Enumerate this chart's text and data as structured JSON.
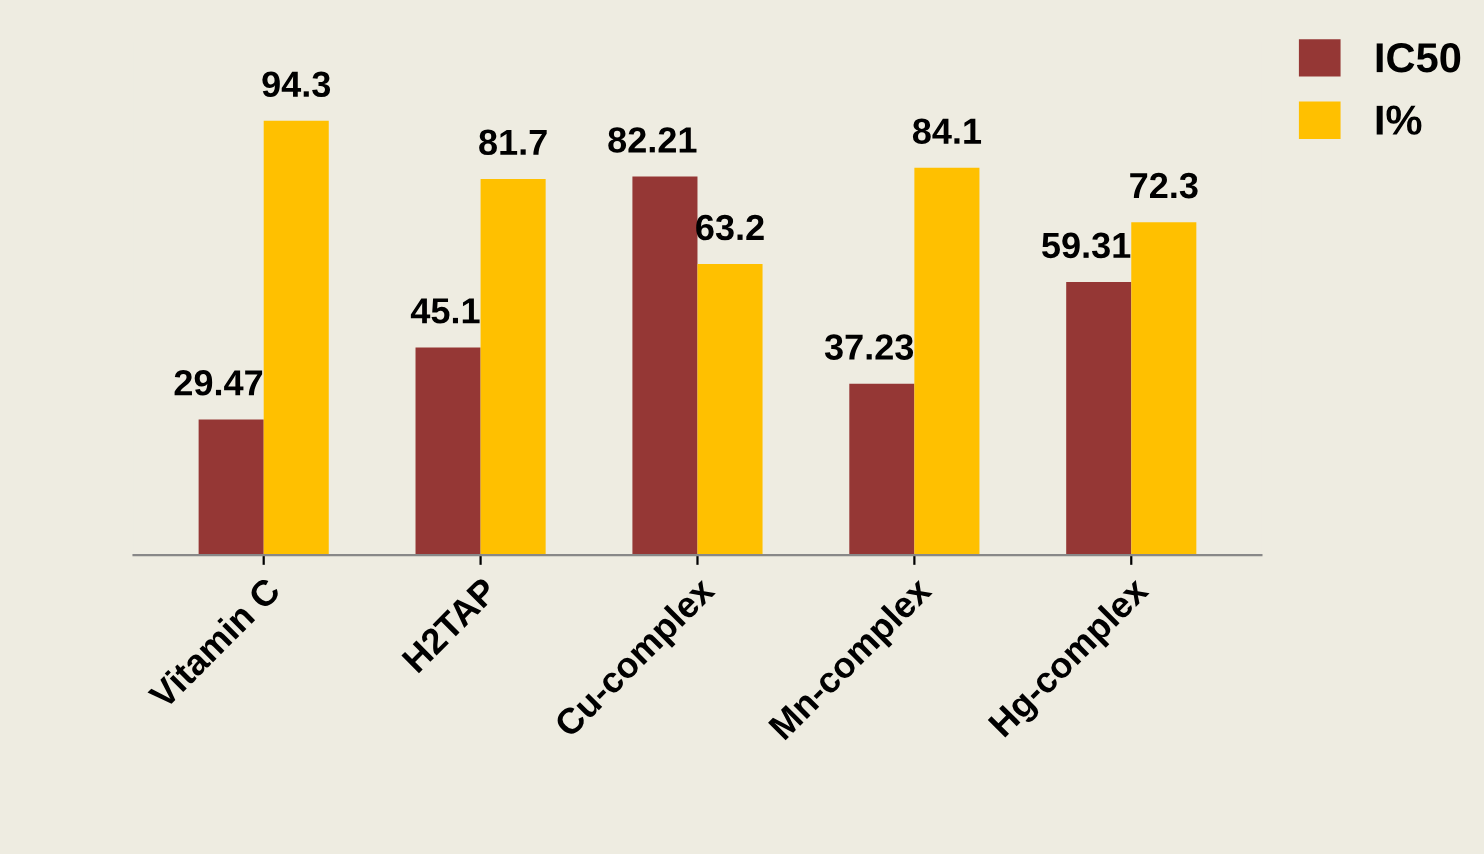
{
  "chart_data": {
    "type": "bar",
    "categories": [
      "Vitamin C",
      "H2TAP",
      "Cu-complex",
      "Mn-complex",
      "Hg-complex"
    ],
    "series": [
      {
        "name": "IC50",
        "color": "#953735",
        "values": [
          29.47,
          45.1,
          82.21,
          37.23,
          59.31
        ]
      },
      {
        "name": "I%",
        "color": "#ffc000",
        "values": [
          94.3,
          81.7,
          63.2,
          84.1,
          72.3
        ]
      }
    ],
    "data_labels": true,
    "legend": "top right",
    "grid": false
  }
}
